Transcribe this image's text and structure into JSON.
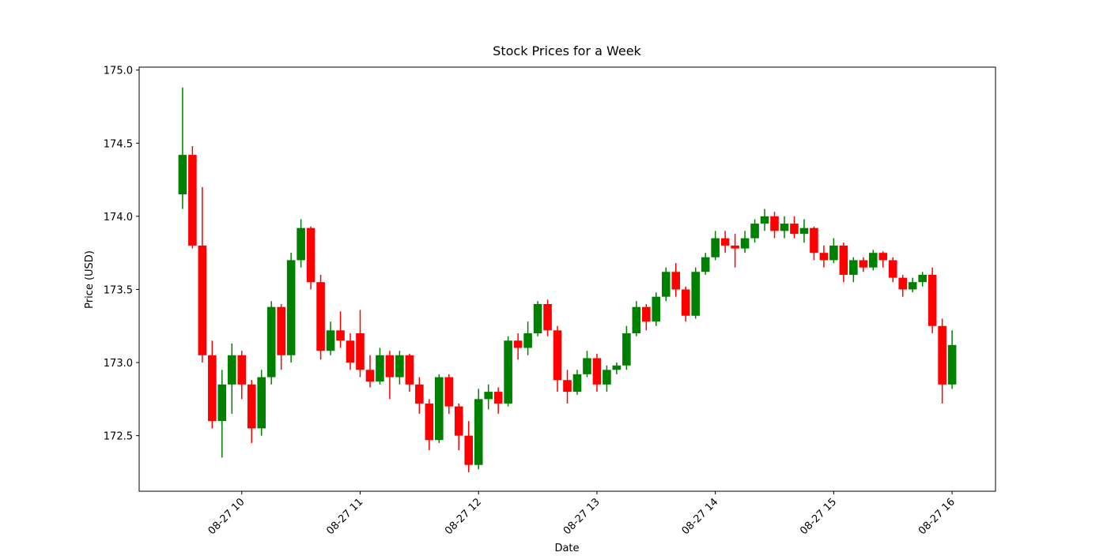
{
  "chart_data": {
    "type": "candlestick",
    "title": "Stock Prices for a Week",
    "xlabel": "Date",
    "ylabel": "Price (USD)",
    "up_color": "green",
    "down_color": "red",
    "x": [
      "08-27 09:30",
      "08-27 09:35",
      "08-27 09:40",
      "08-27 09:45",
      "08-27 09:50",
      "08-27 09:55",
      "08-27 10:00",
      "08-27 10:05",
      "08-27 10:10",
      "08-27 10:15",
      "08-27 10:20",
      "08-27 10:25",
      "08-27 10:30",
      "08-27 10:35",
      "08-27 10:40",
      "08-27 10:45",
      "08-27 10:50",
      "08-27 10:55",
      "08-27 11:00",
      "08-27 11:05",
      "08-27 11:10",
      "08-27 11:15",
      "08-27 11:20",
      "08-27 11:25",
      "08-27 11:30",
      "08-27 11:35",
      "08-27 11:40",
      "08-27 11:45",
      "08-27 11:50",
      "08-27 11:55",
      "08-27 12:00",
      "08-27 12:05",
      "08-27 12:10",
      "08-27 12:15",
      "08-27 12:20",
      "08-27 12:25",
      "08-27 12:30",
      "08-27 12:35",
      "08-27 12:40",
      "08-27 12:45",
      "08-27 12:50",
      "08-27 12:55",
      "08-27 13:00",
      "08-27 13:05",
      "08-27 13:10",
      "08-27 13:15",
      "08-27 13:20",
      "08-27 13:25",
      "08-27 13:30",
      "08-27 13:35",
      "08-27 13:40",
      "08-27 13:45",
      "08-27 13:50",
      "08-27 13:55",
      "08-27 14:00",
      "08-27 14:05",
      "08-27 14:10",
      "08-27 14:15",
      "08-27 14:20",
      "08-27 14:25",
      "08-27 14:30",
      "08-27 14:35",
      "08-27 14:40",
      "08-27 14:45",
      "08-27 14:50",
      "08-27 14:55",
      "08-27 15:00",
      "08-27 15:05",
      "08-27 15:10",
      "08-27 15:15",
      "08-27 15:20",
      "08-27 15:25",
      "08-27 15:30",
      "08-27 15:35",
      "08-27 15:40",
      "08-27 15:45",
      "08-27 15:50",
      "08-27 15:55",
      "08-27 16:00"
    ],
    "open": [
      174.15,
      174.42,
      173.8,
      173.05,
      172.6,
      172.85,
      173.05,
      172.85,
      172.55,
      172.9,
      173.38,
      173.05,
      173.7,
      173.92,
      173.55,
      173.08,
      173.22,
      173.15,
      173.2,
      172.95,
      172.87,
      173.05,
      172.9,
      173.05,
      172.85,
      172.72,
      172.47,
      172.9,
      172.7,
      172.5,
      172.3,
      172.75,
      172.8,
      172.72,
      173.15,
      173.1,
      173.2,
      173.4,
      173.22,
      172.88,
      172.8,
      172.92,
      173.03,
      172.85,
      172.95,
      172.98,
      173.2,
      173.38,
      173.28,
      173.45,
      173.62,
      173.5,
      173.32,
      173.62,
      173.72,
      173.85,
      173.8,
      173.78,
      173.85,
      173.95,
      174.0,
      173.9,
      173.95,
      173.88,
      173.92,
      173.75,
      173.7,
      173.8,
      173.6,
      173.7,
      173.65,
      173.75,
      173.7,
      173.58,
      173.5,
      173.55,
      173.6,
      173.25,
      172.85
    ],
    "high": [
      174.88,
      174.48,
      174.2,
      173.15,
      172.95,
      173.13,
      173.08,
      172.88,
      172.95,
      173.42,
      173.4,
      173.75,
      173.98,
      173.93,
      173.6,
      173.28,
      173.35,
      173.2,
      173.36,
      173.05,
      173.1,
      173.08,
      173.08,
      173.06,
      172.9,
      172.75,
      172.92,
      172.92,
      172.72,
      172.6,
      172.82,
      172.85,
      172.83,
      173.18,
      173.2,
      173.28,
      173.42,
      173.43,
      173.25,
      172.95,
      172.95,
      173.08,
      173.06,
      172.98,
      173.0,
      173.25,
      173.42,
      173.4,
      173.48,
      173.65,
      173.68,
      173.52,
      173.65,
      173.75,
      173.9,
      173.9,
      173.88,
      173.9,
      173.98,
      174.05,
      174.03,
      174.0,
      174.0,
      173.98,
      173.93,
      173.8,
      173.85,
      173.82,
      173.72,
      173.72,
      173.77,
      173.76,
      173.72,
      173.6,
      173.58,
      173.62,
      173.65,
      173.3,
      173.22
    ],
    "low": [
      174.05,
      173.78,
      173.0,
      172.55,
      172.35,
      172.65,
      172.75,
      172.45,
      172.5,
      172.85,
      172.95,
      173.0,
      173.65,
      173.5,
      173.02,
      173.05,
      173.1,
      172.95,
      172.9,
      172.83,
      172.85,
      172.75,
      172.85,
      172.8,
      172.65,
      172.4,
      172.45,
      172.65,
      172.4,
      172.25,
      172.27,
      172.68,
      172.65,
      172.7,
      173.02,
      173.05,
      173.18,
      173.18,
      172.8,
      172.72,
      172.78,
      172.9,
      172.8,
      172.8,
      172.92,
      172.95,
      173.18,
      173.22,
      173.25,
      173.42,
      173.45,
      173.28,
      173.3,
      173.6,
      173.7,
      173.75,
      173.65,
      173.75,
      173.82,
      173.9,
      173.85,
      173.85,
      173.85,
      173.82,
      173.7,
      173.65,
      173.68,
      173.55,
      173.55,
      173.62,
      173.63,
      173.65,
      173.55,
      173.45,
      173.48,
      173.52,
      173.2,
      172.72,
      172.82
    ],
    "close": [
      174.42,
      173.8,
      173.05,
      172.6,
      172.85,
      173.05,
      172.85,
      172.55,
      172.9,
      173.38,
      173.05,
      173.7,
      173.92,
      173.55,
      173.08,
      173.22,
      173.15,
      173.0,
      172.95,
      172.87,
      173.05,
      172.9,
      173.05,
      172.85,
      172.72,
      172.47,
      172.9,
      172.7,
      172.5,
      172.3,
      172.75,
      172.8,
      172.72,
      173.15,
      173.1,
      173.2,
      173.4,
      173.22,
      172.88,
      172.8,
      172.92,
      173.03,
      172.85,
      172.95,
      172.98,
      173.2,
      173.38,
      173.28,
      173.45,
      173.62,
      173.5,
      173.32,
      173.62,
      173.72,
      173.85,
      173.8,
      173.78,
      173.85,
      173.95,
      174.0,
      173.9,
      173.95,
      173.88,
      173.92,
      173.75,
      173.7,
      173.8,
      173.6,
      173.7,
      173.65,
      173.75,
      173.7,
      173.58,
      173.5,
      173.55,
      173.6,
      173.25,
      172.85,
      173.12
    ],
    "xlim": [
      "08-27 09:08",
      "08-27 16:22"
    ],
    "xticks": [
      {
        "value": "08-27 10:00",
        "label": "08-27 10"
      },
      {
        "value": "08-27 11:00",
        "label": "08-27 11"
      },
      {
        "value": "08-27 12:00",
        "label": "08-27 12"
      },
      {
        "value": "08-27 13:00",
        "label": "08-27 13"
      },
      {
        "value": "08-27 14:00",
        "label": "08-27 14"
      },
      {
        "value": "08-27 15:00",
        "label": "08-27 15"
      },
      {
        "value": "08-27 16:00",
        "label": "08-27 16"
      }
    ],
    "ylim": [
      172.12,
      175.02
    ],
    "yticks": [
      172.5,
      {
        "value": 173,
        "label": "173.0"
      },
      173.5,
      {
        "value": 174,
        "label": "174.0"
      },
      174.5,
      {
        "value": 175,
        "label": "175.0"
      }
    ]
  }
}
